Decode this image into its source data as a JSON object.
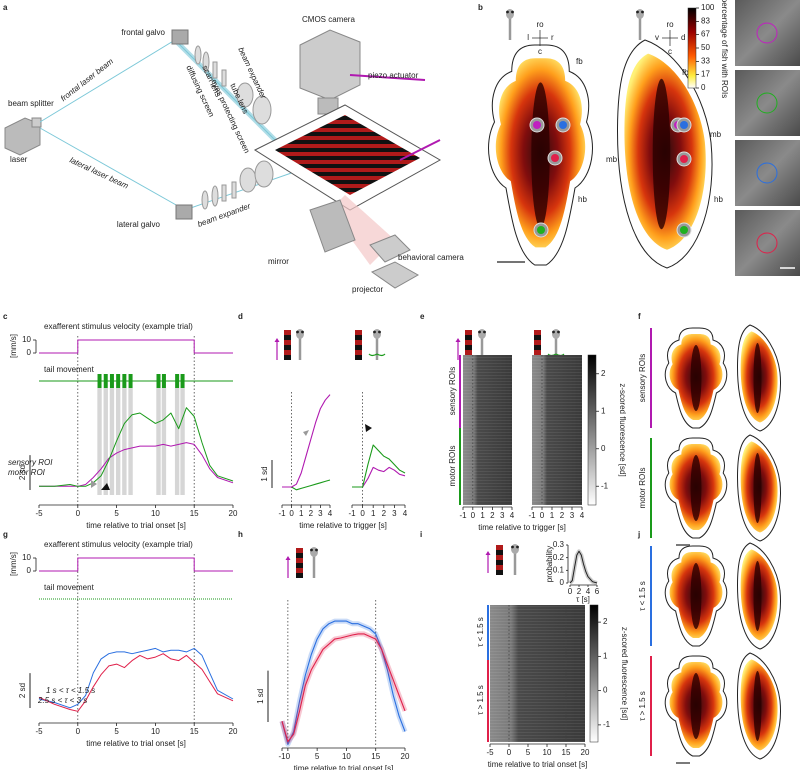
{
  "panels": {
    "a": {
      "label": "a",
      "items": [
        "frontal galvo",
        "beam expander",
        "diffusing screen",
        "scan lens",
        "eyes protecting screen",
        "tube lens",
        "CMOS camera",
        "piezo actuator",
        "beam splitter",
        "frontal laser beam",
        "laser",
        "lateral laser beam",
        "lateral galvo",
        "beam expander",
        "mirror",
        "behavioral camera",
        "projector"
      ]
    },
    "b": {
      "label": "b",
      "axes_dorsal": [
        "ro",
        "l",
        "r",
        "c"
      ],
      "axes_lateral": [
        "ro",
        "v",
        "d",
        "c"
      ],
      "regions": [
        "fb",
        "mb",
        "hb",
        "fb",
        "mb",
        "hb"
      ],
      "colorbar": {
        "label": "percentage of fish with ROIs",
        "lim": [
          0,
          100
        ],
        "ticks": [
          100,
          83,
          67,
          50,
          33,
          17,
          0
        ]
      }
    },
    "c": {
      "label": "c",
      "xlabel": "time relative to trial onset [s]",
      "xlim": [
        -5,
        20
      ],
      "xticks": [
        -5,
        0,
        5,
        10,
        15,
        20
      ],
      "stimulus": {
        "title": "exafferent stimulus velocity (example trial)",
        "unit": "[mm/s]",
        "ylim": [
          0,
          10
        ],
        "yticks": [
          0,
          10
        ],
        "x": [
          -5,
          0,
          0,
          15,
          15,
          20
        ],
        "values": [
          0,
          0,
          10,
          10,
          0,
          0
        ],
        "color": "#b019b0"
      },
      "tail": {
        "label": "tail movement",
        "color": "#1a9a1a",
        "bouts": [
          2.8,
          3.6,
          4.4,
          5.2,
          6,
          6.8,
          10.4,
          11.1,
          12.8,
          13.5
        ]
      },
      "traces": {
        "ylim": [
          -0.5,
          5
        ],
        "x": [
          -5,
          -3,
          -1,
          0,
          1,
          2,
          3,
          4,
          5,
          6,
          7,
          8,
          9,
          10,
          11,
          12,
          13,
          14,
          15,
          16,
          17,
          18,
          20
        ],
        "series": [
          {
            "name": "sensory ROI",
            "color": "#b019b0",
            "values": [
              0,
              0,
              0,
              0,
              0.1,
              0.5,
              1,
              1.6,
              1.9,
              2.1,
              2.2,
              2.3,
              2.3,
              2.3,
              2.4,
              2.3,
              2.4,
              2.5,
              2.4,
              1.8,
              1,
              0.5,
              0.2
            ]
          },
          {
            "name": "motor ROI",
            "color": "#1a9a1a",
            "values": [
              0,
              0,
              0.1,
              0,
              0,
              0.2,
              0.6,
              1.5,
              2.6,
              3.6,
              4.1,
              4.2,
              3.9,
              3.6,
              3.8,
              4.2,
              3.3,
              4.5,
              4,
              2.5,
              1.2,
              0.6,
              0.3
            ]
          }
        ],
        "scalebar": {
          "value": 2,
          "label": "2 sd"
        }
      }
    },
    "d": {
      "label": "d",
      "xlabel": "time relative to trigger [s]",
      "xlim": [
        -1,
        4
      ],
      "xticks": [
        -1,
        0,
        1,
        2,
        3,
        4
      ],
      "ylim": [
        -0.5,
        3.5
      ],
      "x": [
        -1,
        -0.5,
        0,
        0.5,
        1,
        1.5,
        2,
        2.5,
        3,
        3.5,
        4
      ],
      "plots": [
        {
          "series": [
            {
              "color": "#1a9a1a",
              "values": [
                0,
                0,
                0,
                -0.1,
                -0.05,
                0,
                0.05,
                0.1,
                0.15,
                0.2,
                0.25
              ]
            },
            {
              "color": "#b019b0",
              "values": [
                0,
                0,
                0,
                0.1,
                0.5,
                1.1,
                1.7,
                2.3,
                2.8,
                3.1,
                3.3
              ]
            }
          ]
        },
        {
          "series": [
            {
              "color": "#b019b0",
              "values": [
                0,
                0,
                0,
                0.3,
                0.7,
                0.6,
                0.55,
                0.7,
                0.6,
                0.45,
                0.4
              ]
            },
            {
              "color": "#1a9a1a",
              "values": [
                0,
                0,
                0,
                0.8,
                1.5,
                1.3,
                1.1,
                1,
                0.8,
                0.6,
                0.5
              ]
            }
          ]
        }
      ],
      "scalebar": {
        "value": 1,
        "label": "1 sd"
      }
    },
    "e": {
      "label": "e",
      "groups": [
        "sensory ROIs",
        "motor ROIs"
      ],
      "xlabel": "time relative to trigger [s]",
      "xlim": [
        -1,
        4
      ],
      "xticks": [
        -1,
        0,
        1,
        2,
        3,
        4
      ],
      "colorbar": {
        "label": "z-scored fluorescence [sd]",
        "lim": [
          -1.5,
          2.5
        ],
        "ticks": [
          2,
          1,
          0,
          -1
        ]
      }
    },
    "f": {
      "label": "f",
      "groups": [
        "sensory ROIs",
        "motor ROIs"
      ]
    },
    "g": {
      "label": "g",
      "xlabel": "time relative to trial onset [s]",
      "xlim": [
        -5,
        20
      ],
      "xticks": [
        -5,
        0,
        5,
        10,
        15,
        20
      ],
      "stimulus": {
        "title": "exafferent stimulus velocity (example trial)",
        "unit": "[mm/s]",
        "ylim": [
          0,
          10
        ],
        "yticks": [
          0,
          10
        ],
        "x": [
          -5,
          0,
          0,
          15,
          15,
          20
        ],
        "values": [
          0,
          0,
          10,
          10,
          0,
          0
        ],
        "color": "#b019b0"
      },
      "tail": {
        "label": "tail movement",
        "color": "#1a9a1a",
        "bouts": []
      },
      "traces": {
        "ylim": [
          -0.5,
          5
        ],
        "x": [
          -5,
          -3,
          -1,
          0,
          1,
          2,
          3,
          4,
          5,
          6,
          7,
          8,
          9,
          10,
          11,
          12,
          13,
          14,
          15,
          16,
          17,
          18,
          20
        ],
        "series": [
          {
            "name": "1 s < τ < 1.5 s",
            "color": "#2a6fe0",
            "values": [
              0.3,
              0.1,
              -0.2,
              0,
              0.5,
              1.8,
              2.6,
              2.9,
              3,
              3,
              2.9,
              3,
              3.1,
              3.2,
              3,
              3.1,
              3.1,
              3,
              3.2,
              2.8,
              1.8,
              0.8,
              0.3
            ]
          },
          {
            "name": "2.5 s < τ < 3 s",
            "color": "#e0204a",
            "values": [
              0.4,
              0,
              -0.3,
              -0.4,
              0.2,
              1,
              1.7,
              2.2,
              2.3,
              2.1,
              2.5,
              2.8,
              2.6,
              2.7,
              2.9,
              2.6,
              2.5,
              2.8,
              2.4,
              2,
              1.3,
              0.6,
              0.2
            ]
          }
        ],
        "scalebar": {
          "value": 2,
          "label": "2 sd"
        }
      }
    },
    "h": {
      "label": "h",
      "xlabel": "time relative to trial onset [s]",
      "xlim": [
        -1,
        20
      ],
      "xticks": [
        -1,
        0,
        5,
        10,
        15,
        20
      ],
      "ylim": [
        -0.5,
        2.5
      ],
      "x": [
        -1,
        0,
        1,
        2,
        3,
        4,
        5,
        6,
        7,
        8,
        9,
        10,
        11,
        12,
        13,
        14,
        15,
        16,
        17,
        18,
        19,
        20
      ],
      "series": [
        {
          "color": "#2a6fe0",
          "values": [
            0.1,
            -0.35,
            -0.1,
            0.5,
            1,
            1.4,
            1.7,
            1.9,
            2,
            2.05,
            2.05,
            2.05,
            2,
            2,
            1.95,
            1.9,
            1.8,
            1.5,
            1.1,
            0.6,
            0.2,
            -0.1
          ]
        },
        {
          "color": "#e0204a",
          "values": [
            0.1,
            -0.3,
            -0.15,
            0.3,
            0.8,
            1.1,
            1.3,
            1.5,
            1.6,
            1.7,
            1.72,
            1.75,
            1.78,
            1.8,
            1.8,
            1.75,
            1.7,
            1.5,
            1.2,
            0.9,
            0.6,
            0.3
          ]
        }
      ],
      "scalebar": {
        "value": 1,
        "label": "1 sd"
      }
    },
    "i": {
      "label": "i",
      "inset": {
        "ylabel": "probability",
        "xlabel": "τ [s]",
        "xlim": [
          0,
          6
        ],
        "xticks": [
          0,
          2,
          4,
          6
        ],
        "ylim": [
          0,
          0.3
        ],
        "yticks": [
          0,
          0.1,
          0.2,
          0.3
        ],
        "x": [
          0,
          0.5,
          1,
          1.5,
          2,
          2.5,
          3,
          3.5,
          4,
          5,
          6
        ],
        "values": [
          0,
          0.02,
          0.12,
          0.22,
          0.25,
          0.22,
          0.15,
          0.09,
          0.05,
          0.01,
          0
        ]
      },
      "groups": [
        "τ < 1.5 s",
        "τ > 1.5 s"
      ],
      "xlabel": "time relative to trial onset [s]",
      "xlim": [
        -5,
        20
      ],
      "xticks": [
        -5,
        0,
        5,
        10,
        15,
        20
      ],
      "colorbar": {
        "label": "z-scored fluorescence [sd]",
        "lim": [
          -1.5,
          2.5
        ],
        "ticks": [
          2,
          1,
          0,
          -1
        ]
      }
    },
    "j": {
      "label": "j",
      "groups": [
        "τ < 1.5 s",
        "τ > 1.5 s"
      ]
    }
  }
}
